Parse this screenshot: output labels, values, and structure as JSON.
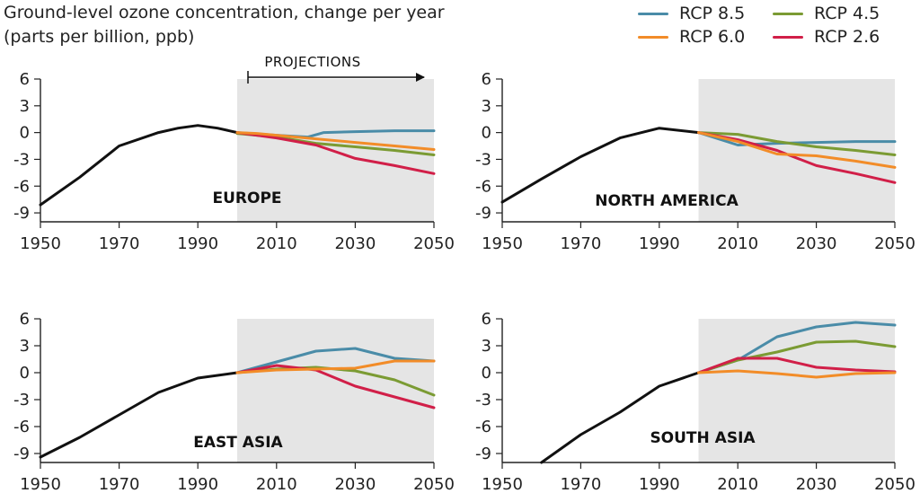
{
  "title": {
    "line1": "Ground-level ozone concentration, change per year",
    "line2": "(parts per billion, ppb)"
  },
  "legend": [
    {
      "key": "rcp85",
      "label": "RCP 8.5",
      "color": "#4a8ca8"
    },
    {
      "key": "rcp45",
      "label": "RCP 4.5",
      "color": "#7b9b33"
    },
    {
      "key": "rcp60",
      "label": "RCP 6.0",
      "color": "#f28c28"
    },
    {
      "key": "rcp26",
      "label": "RCP 2.6",
      "color": "#d11f48"
    }
  ],
  "projections_label": "PROJECTIONS",
  "chart_data": [
    {
      "type": "line",
      "region": "EUROPE",
      "xlim": [
        1950,
        2050
      ],
      "ylim": [
        -10,
        6
      ],
      "xticks": [
        1950,
        1970,
        1990,
        2010,
        2030,
        2050
      ],
      "yticks": [
        6,
        3,
        0,
        -3,
        -6,
        -9
      ],
      "projection_shading": [
        2000,
        2050
      ],
      "historical": {
        "x": [
          1950,
          1960,
          1970,
          1980,
          1985,
          1990,
          1995,
          2000
        ],
        "y": [
          -8.1,
          -5.0,
          -1.5,
          0.0,
          0.5,
          0.8,
          0.5,
          0.0
        ]
      },
      "series": [
        {
          "key": "rcp85",
          "x": [
            2000,
            2010,
            2018,
            2022,
            2030,
            2040,
            2050
          ],
          "y": [
            0.0,
            -0.3,
            -0.5,
            0.0,
            0.1,
            0.2,
            0.2
          ]
        },
        {
          "key": "rcp45",
          "x": [
            2000,
            2010,
            2020,
            2030,
            2040,
            2050
          ],
          "y": [
            -0.1,
            -0.5,
            -1.2,
            -1.6,
            -2.0,
            -2.5
          ]
        },
        {
          "key": "rcp60",
          "x": [
            2000,
            2005,
            2010,
            2020,
            2030,
            2040,
            2050
          ],
          "y": [
            0.0,
            -0.1,
            -0.3,
            -0.7,
            -1.1,
            -1.5,
            -1.9
          ]
        },
        {
          "key": "rcp26",
          "x": [
            2000,
            2010,
            2020,
            2030,
            2040,
            2050
          ],
          "y": [
            0.0,
            -0.6,
            -1.4,
            -2.9,
            -3.7,
            -4.6
          ]
        }
      ]
    },
    {
      "type": "line",
      "region": "NORTH AMERICA",
      "xlim": [
        1950,
        2050
      ],
      "ylim": [
        -10,
        6
      ],
      "xticks": [
        1950,
        1970,
        1990,
        2010,
        2030,
        2050
      ],
      "yticks": [
        6,
        3,
        0,
        -3,
        -6,
        -9
      ],
      "projection_shading": [
        2000,
        2050
      ],
      "historical": {
        "x": [
          1950,
          1960,
          1970,
          1980,
          1990,
          2000
        ],
        "y": [
          -7.8,
          -5.2,
          -2.7,
          -0.6,
          0.5,
          0.0
        ]
      },
      "series": [
        {
          "key": "rcp85",
          "x": [
            2000,
            2010,
            2015,
            2020,
            2030,
            2040,
            2050
          ],
          "y": [
            0.0,
            -1.4,
            -1.3,
            -1.2,
            -1.1,
            -1.0,
            -1.0
          ]
        },
        {
          "key": "rcp45",
          "x": [
            2000,
            2010,
            2020,
            2030,
            2040,
            2050
          ],
          "y": [
            0.0,
            -0.2,
            -1.0,
            -1.6,
            -2.0,
            -2.5
          ]
        },
        {
          "key": "rcp60",
          "x": [
            2000,
            2010,
            2020,
            2030,
            2040,
            2050
          ],
          "y": [
            0.0,
            -1.0,
            -2.4,
            -2.6,
            -3.2,
            -3.9
          ]
        },
        {
          "key": "rcp26",
          "x": [
            2000,
            2010,
            2020,
            2030,
            2040,
            2050
          ],
          "y": [
            0.0,
            -0.8,
            -2.0,
            -3.7,
            -4.6,
            -5.6
          ]
        }
      ]
    },
    {
      "type": "line",
      "region": "EAST ASIA",
      "xlim": [
        1950,
        2050
      ],
      "ylim": [
        -10,
        6
      ],
      "xticks": [
        1950,
        1970,
        1990,
        2010,
        2030,
        2050
      ],
      "yticks": [
        6,
        3,
        0,
        -3,
        -6,
        -9
      ],
      "projection_shading": [
        2000,
        2050
      ],
      "historical": {
        "x": [
          1950,
          1960,
          1970,
          1980,
          1990,
          2000
        ],
        "y": [
          -9.4,
          -7.2,
          -4.7,
          -2.2,
          -0.6,
          0.0
        ]
      },
      "series": [
        {
          "key": "rcp85",
          "x": [
            2000,
            2010,
            2020,
            2030,
            2040,
            2050
          ],
          "y": [
            0.0,
            1.2,
            2.4,
            2.7,
            1.6,
            1.3
          ]
        },
        {
          "key": "rcp45",
          "x": [
            2000,
            2010,
            2020,
            2030,
            2040,
            2050
          ],
          "y": [
            0.0,
            0.4,
            0.6,
            0.2,
            -0.8,
            -2.5
          ]
        },
        {
          "key": "rcp60",
          "x": [
            2000,
            2010,
            2020,
            2030,
            2040,
            2050
          ],
          "y": [
            0.0,
            0.3,
            0.4,
            0.5,
            1.3,
            1.3
          ]
        },
        {
          "key": "rcp26",
          "x": [
            2000,
            2010,
            2020,
            2030,
            2040,
            2050
          ],
          "y": [
            0.0,
            0.8,
            0.3,
            -1.5,
            -2.7,
            -3.9
          ]
        }
      ]
    },
    {
      "type": "line",
      "region": "SOUTH ASIA",
      "xlim": [
        1950,
        2050
      ],
      "ylim": [
        -10,
        6
      ],
      "xticks": [
        1950,
        1970,
        1990,
        2010,
        2030,
        2050
      ],
      "yticks": [
        6,
        3,
        0,
        -3,
        -6,
        -9
      ],
      "projection_shading": [
        2000,
        2050
      ],
      "historical": {
        "x": [
          1960,
          1970,
          1980,
          1990,
          2000
        ],
        "y": [
          -10.0,
          -6.9,
          -4.4,
          -1.5,
          0.0
        ]
      },
      "series": [
        {
          "key": "rcp85",
          "x": [
            2000,
            2010,
            2020,
            2030,
            2040,
            2050
          ],
          "y": [
            0.0,
            1.4,
            4.0,
            5.1,
            5.6,
            5.3
          ]
        },
        {
          "key": "rcp45",
          "x": [
            2000,
            2010,
            2020,
            2030,
            2040,
            2050
          ],
          "y": [
            0.0,
            1.4,
            2.3,
            3.4,
            3.5,
            2.9
          ]
        },
        {
          "key": "rcp60",
          "x": [
            2000,
            2010,
            2020,
            2030,
            2040,
            2050
          ],
          "y": [
            0.0,
            0.2,
            -0.1,
            -0.5,
            -0.1,
            0.0
          ]
        },
        {
          "key": "rcp26",
          "x": [
            2000,
            2010,
            2020,
            2030,
            2040,
            2050
          ],
          "y": [
            0.0,
            1.6,
            1.6,
            0.6,
            0.3,
            0.1
          ]
        }
      ]
    }
  ]
}
